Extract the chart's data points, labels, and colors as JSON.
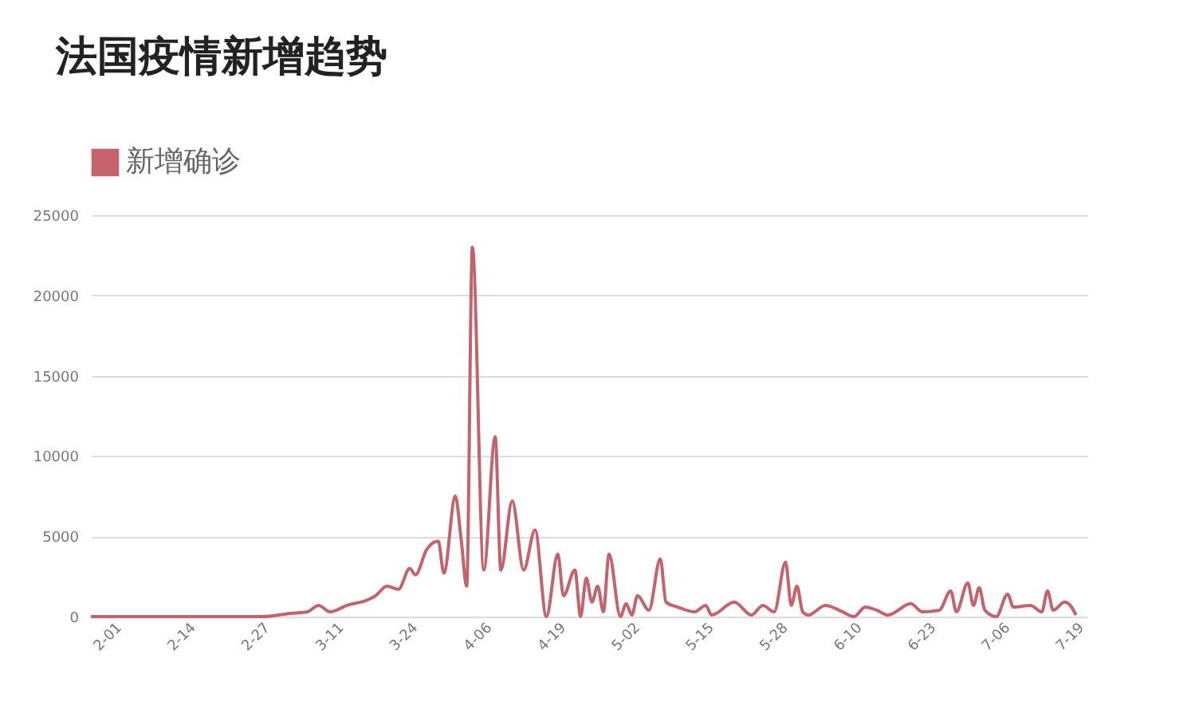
{
  "chart_data": {
    "type": "line",
    "title": "法国疫情新增趋势",
    "legend": "top left",
    "grid": "y",
    "x": [
      "--01-28",
      "--02-01",
      "--02-14",
      "--02-27",
      "--03-03",
      "--03-06",
      "--03-08",
      "--03-10",
      "--03-13",
      "--03-17",
      "--03-18",
      "--03-20",
      "--03-22",
      "--03-24",
      "--03-25",
      "--03-27",
      "--03-29",
      "--03-30",
      "--04-01",
      "--04-02",
      "--04-03",
      "--04-04",
      "--04-06",
      "--04-08",
      "--04-09",
      "--04-11",
      "--04-13",
      "--04-15",
      "--04-17",
      "--04-19",
      "--04-20",
      "--04-22",
      "--04-23",
      "--04-24",
      "--04-25",
      "--04-26",
      "--04-27",
      "--04-28",
      "--04-30",
      "--05-01",
      "--05-02",
      "--05-03",
      "--05-05",
      "--05-07",
      "--05-08",
      "--05-10",
      "--05-13",
      "--05-15",
      "--05-16",
      "--05-20",
      "--05-23",
      "--05-25",
      "--05-27",
      "--05-29",
      "--05-30",
      "--05-31",
      "--06-01",
      "--06-02",
      "--06-05",
      "--06-08",
      "--06-10",
      "--06-12",
      "--06-14",
      "--06-16",
      "--06-20",
      "--06-22",
      "--06-25",
      "--06-27",
      "--06-28",
      "--06-30",
      "--07-01",
      "--07-02",
      "--07-03",
      "--07-05",
      "--07-07",
      "--07-08",
      "--07-11",
      "--07-13",
      "--07-14",
      "--07-15",
      "--07-17",
      "--07-18",
      "--07-19"
    ],
    "series": [
      {
        "name": "新增确诊",
        "color": "#c5626b",
        "values": [
          0,
          0,
          0,
          0,
          200,
          300,
          700,
          300,
          700,
          1100,
          1300,
          1900,
          1700,
          3000,
          2600,
          4200,
          4700,
          2700,
          7500,
          4900,
          1900,
          23000,
          2900,
          11200,
          2900,
          7200,
          2900,
          5400,
          0,
          3900,
          1300,
          2900,
          0,
          2400,
          900,
          1900,
          300,
          3900,
          0,
          800,
          100,
          1300,
          400,
          3600,
          900,
          600,
          300,
          700,
          100,
          900,
          100,
          700,
          300,
          3400,
          700,
          1900,
          300,
          100,
          700,
          300,
          0,
          600,
          400,
          100,
          800,
          300,
          400,
          1600,
          300,
          2100,
          700,
          1800,
          400,
          0,
          1400,
          600,
          700,
          300,
          1600,
          400,
          900,
          700,
          100
        ]
      }
    ],
    "xlim": [
      "--01-28",
      "--07-21"
    ],
    "xticks": [
      {
        "value": "--02-01",
        "label": "2-01"
      },
      {
        "value": "--02-14",
        "label": "2-14"
      },
      {
        "value": "--02-27",
        "label": "2-27"
      },
      {
        "value": "--03-11",
        "label": "3-11"
      },
      {
        "value": "--03-24",
        "label": "3-24"
      },
      {
        "value": "--04-06",
        "label": "4-06"
      },
      {
        "value": "--04-19",
        "label": "4-19"
      },
      {
        "value": "--05-02",
        "label": "5-02"
      },
      {
        "value": "--05-15",
        "label": "5-15"
      },
      {
        "value": "--05-28",
        "label": "5-28"
      },
      {
        "value": "--06-10",
        "label": "6-10"
      },
      {
        "value": "--06-23",
        "label": "6-23"
      },
      {
        "value": "--07-06",
        "label": "7-06"
      },
      {
        "value": "--07-19",
        "label": "7-19"
      }
    ],
    "ylim": [
      0,
      25000
    ],
    "yticks": [
      0,
      5000,
      10000,
      15000,
      20000,
      25000
    ]
  }
}
